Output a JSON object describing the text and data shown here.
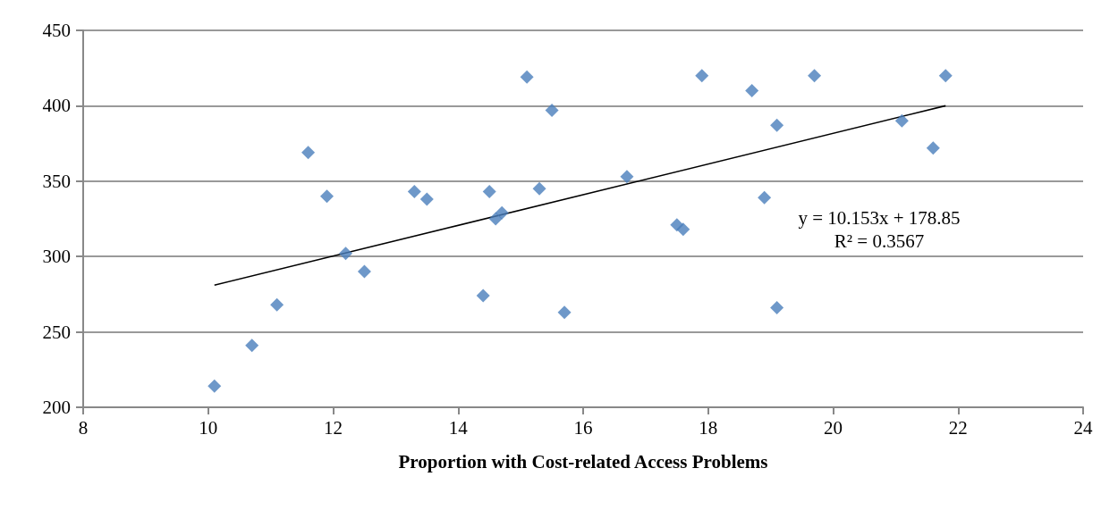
{
  "chart_data": {
    "type": "scatter",
    "xlabel": "Proportion with Cost-related Access Problems",
    "xlim": [
      8,
      24
    ],
    "xticks": [
      8,
      10,
      12,
      14,
      16,
      18,
      20,
      22,
      24
    ],
    "ylim": [
      200,
      450
    ],
    "yticks": [
      200,
      250,
      300,
      350,
      400,
      450
    ],
    "grid": "y",
    "series": [
      {
        "color": "#4a7ebb",
        "marker": "diamond",
        "x": [
          10.1,
          10.7,
          11.1,
          11.6,
          11.9,
          12.2,
          12.5,
          13.3,
          13.5,
          14.4,
          14.5,
          14.6,
          14.7,
          15.1,
          15.3,
          15.5,
          15.7,
          16.7,
          17.5,
          17.6,
          17.9,
          18.7,
          18.9,
          19.1,
          19.1,
          19.7,
          21.1,
          21.6,
          21.8
        ],
        "values": [
          214,
          241,
          268,
          369,
          340,
          302,
          290,
          343,
          338,
          274,
          343,
          325,
          329,
          419,
          345,
          397,
          263,
          353,
          321,
          318,
          420,
          410,
          339,
          387,
          266,
          420,
          390,
          372,
          420
        ]
      },
      {
        "type": "line",
        "color": "#000000",
        "x": [
          10.1,
          21.8
        ],
        "values": [
          281,
          400
        ]
      }
    ],
    "annotations": [
      "y = 10.153x + 178.85",
      "R² = 0.3567"
    ]
  }
}
